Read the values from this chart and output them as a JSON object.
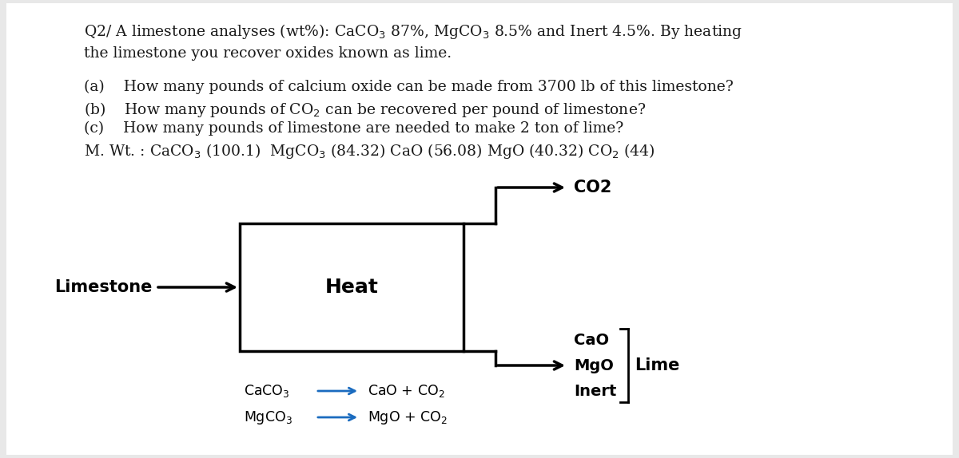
{
  "bg_color": "#e8e8e8",
  "panel_color": "#ffffff",
  "text_color": "#1a1a1a",
  "figsize": [
    12.0,
    5.74
  ],
  "dpi": 100,
  "title_line1": "Q2/ A limestone analyses (wt%): CaCO$_3$ 87%, MgCO$_3$ 8.5% and Inert 4.5%. By heating",
  "title_line2": "the limestone you recover oxides known as lime.",
  "q_a": "(a)    How many pounds of calcium oxide can be made from 3700 lb of this limestone?",
  "q_b": "(b)    How many pounds of CO$_2$ can be recovered per pound of limestone?",
  "q_c": "(c)    How many pounds of limestone are needed to make 2 ton of lime?",
  "mwt": "M. Wt. : CaCO$_3$ (100.1)  MgCO$_3$ (84.32) CaO (56.08) MgO (40.32) CO$_2$ (44)",
  "heat_label": "Heat",
  "limestone_label": "Limestone",
  "co2_label": "CO2",
  "cao_label": "CaO",
  "mgo_label": "MgO",
  "inert_label": "Inert",
  "lime_label": "Lime",
  "rxn1_left": "CaCO$_3$",
  "rxn1_right": "CaO + CO$_2$",
  "rxn2_left": "MgCO$_3$",
  "rxn2_right": "MgO + CO$_2$",
  "arrow_color": "#1a6bbf",
  "diagram_arrow_color": "#000000",
  "box_line_color": "#000000"
}
